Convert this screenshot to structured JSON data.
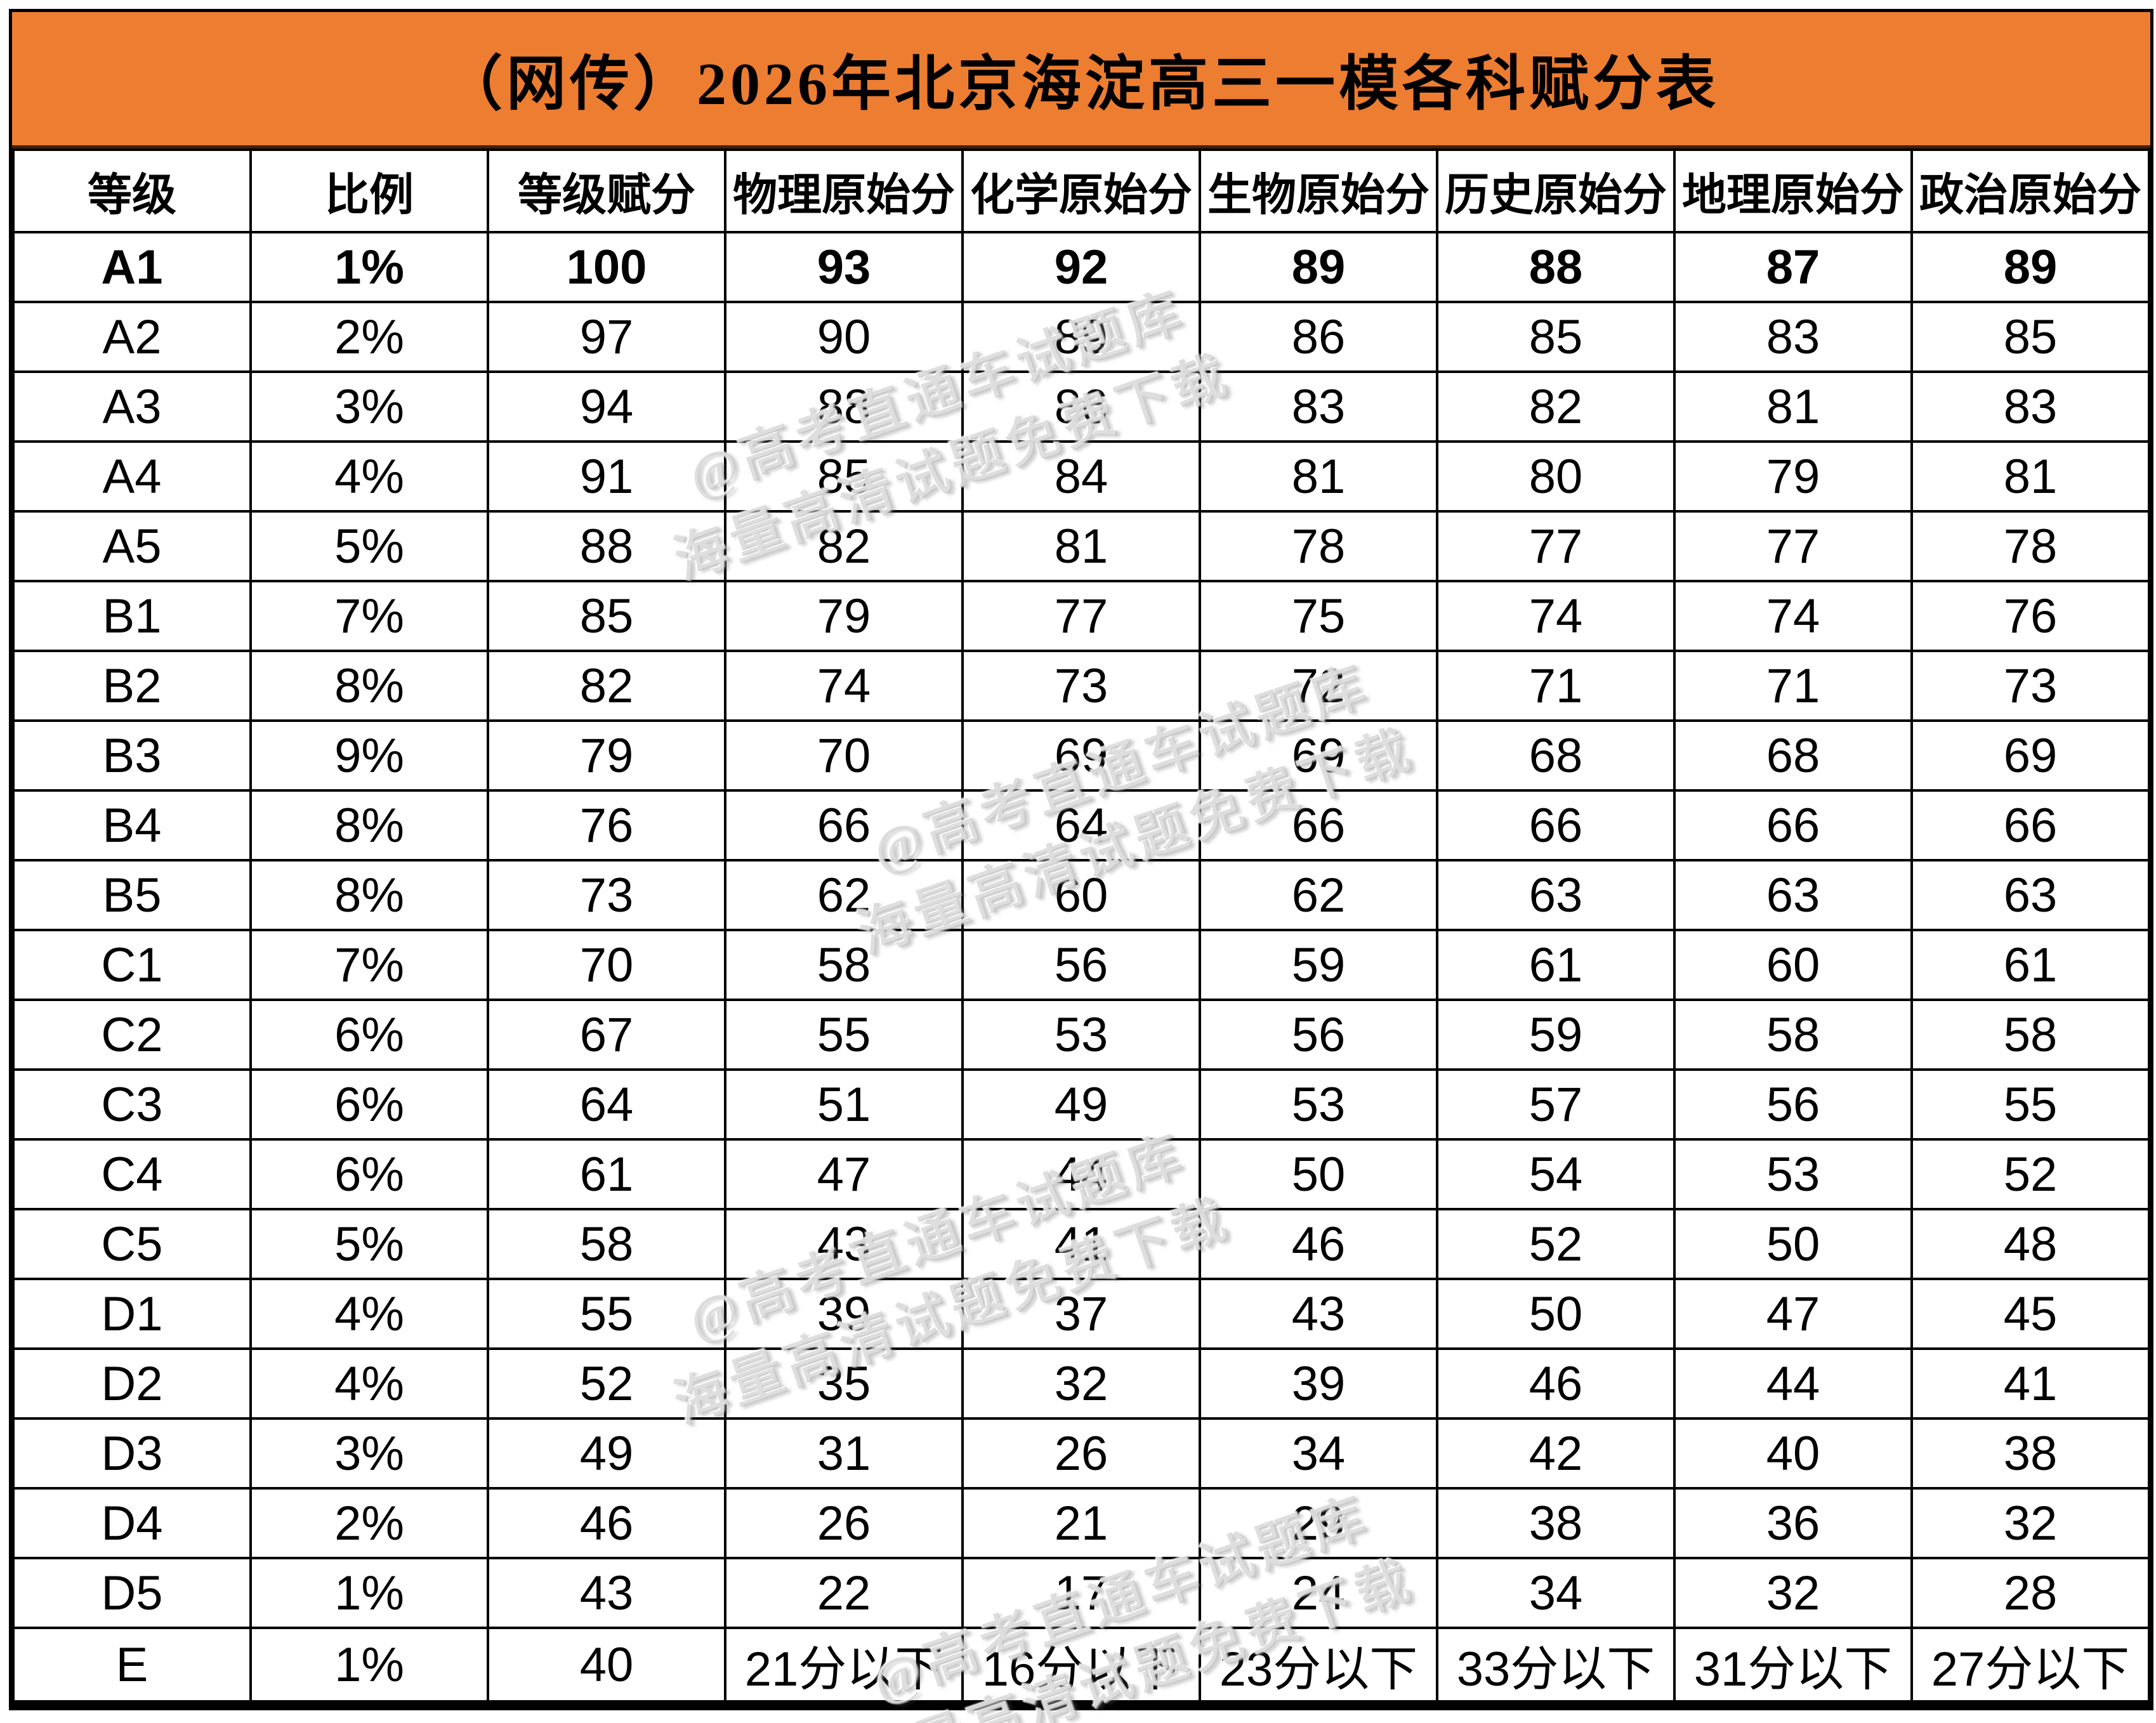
{
  "title": "（网传）2026年北京海淀高三一模各科赋分表",
  "watermark": {
    "line1": "@高考直通车试题库",
    "line2": "海量高清试题免费下载"
  },
  "colors": {
    "title_bar_bg": "#ED7D31",
    "accent_red": "#D90F0F",
    "grid": "#000000"
  },
  "table": {
    "headers": [
      "等级",
      "比例",
      "等级赋分",
      "物理原始分",
      "化学原始分",
      "生物原始分",
      "历史原始分",
      "地理原始分",
      "政治原始分"
    ],
    "rows": [
      {
        "cells": [
          "A1",
          "1%",
          "100",
          "93",
          "92",
          "89",
          "88",
          "87",
          "89"
        ],
        "score_red": true,
        "bold": true
      },
      {
        "cells": [
          "A2",
          "2%",
          "97",
          "90",
          "89",
          "86",
          "85",
          "83",
          "85"
        ],
        "score_red": true,
        "bold": false
      },
      {
        "cells": [
          "A3",
          "3%",
          "94",
          "88",
          "86",
          "83",
          "82",
          "81",
          "83"
        ],
        "score_red": true,
        "bold": false
      },
      {
        "cells": [
          "A4",
          "4%",
          "91",
          "85",
          "84",
          "81",
          "80",
          "79",
          "81"
        ],
        "score_red": true,
        "bold": false
      },
      {
        "cells": [
          "A5",
          "5%",
          "88",
          "82",
          "81",
          "78",
          "77",
          "77",
          "78"
        ],
        "score_red": true,
        "bold": false
      },
      {
        "cells": [
          "B1",
          "7%",
          "85",
          "79",
          "77",
          "75",
          "74",
          "74",
          "76"
        ],
        "score_red": true,
        "bold": false
      },
      {
        "cells": [
          "B2",
          "8%",
          "82",
          "74",
          "73",
          "72",
          "71",
          "71",
          "73"
        ],
        "score_red": true,
        "bold": false
      },
      {
        "cells": [
          "B3",
          "9%",
          "79",
          "70",
          "69",
          "69",
          "68",
          "68",
          "69"
        ],
        "score_red": true,
        "bold": false
      },
      {
        "cells": [
          "B4",
          "8%",
          "76",
          "66",
          "64",
          "66",
          "66",
          "66",
          "66"
        ],
        "score_red": true,
        "bold": false
      },
      {
        "cells": [
          "B5",
          "8%",
          "73",
          "62",
          "60",
          "62",
          "63",
          "63",
          "63"
        ],
        "score_red": true,
        "bold": false
      },
      {
        "cells": [
          "C1",
          "7%",
          "70",
          "58",
          "56",
          "59",
          "61",
          "60",
          "61"
        ],
        "score_red": true,
        "bold": false
      },
      {
        "cells": [
          "C2",
          "6%",
          "67",
          "55",
          "53",
          "56",
          "59",
          "58",
          "58"
        ],
        "score_red": true,
        "bold": false
      },
      {
        "cells": [
          "C3",
          "6%",
          "64",
          "51",
          "49",
          "53",
          "57",
          "56",
          "55"
        ],
        "score_red": true,
        "bold": false
      },
      {
        "cells": [
          "C4",
          "6%",
          "61",
          "47",
          "44",
          "50",
          "54",
          "53",
          "52"
        ],
        "score_red": true,
        "bold": false
      },
      {
        "cells": [
          "C5",
          "5%",
          "58",
          "43",
          "41",
          "46",
          "52",
          "50",
          "48"
        ],
        "score_red": true,
        "bold": false
      },
      {
        "cells": [
          "D1",
          "4%",
          "55",
          "39",
          "37",
          "43",
          "50",
          "47",
          "45"
        ],
        "score_red": true,
        "bold": false
      },
      {
        "cells": [
          "D2",
          "4%",
          "52",
          "35",
          "32",
          "39",
          "46",
          "44",
          "41"
        ],
        "score_red": false,
        "bold": false
      },
      {
        "cells": [
          "D3",
          "3%",
          "49",
          "31",
          "26",
          "34",
          "42",
          "40",
          "38"
        ],
        "score_red": false,
        "bold": false
      },
      {
        "cells": [
          "D4",
          "2%",
          "46",
          "26",
          "21",
          "29",
          "38",
          "36",
          "32"
        ],
        "score_red": false,
        "bold": false
      },
      {
        "cells": [
          "D5",
          "1%",
          "43",
          "22",
          "17",
          "24",
          "34",
          "32",
          "28"
        ],
        "score_red": false,
        "bold": false
      },
      {
        "cells": [
          "E",
          "1%",
          "40",
          "21分以下",
          "16分以下",
          "23分以下",
          "33分以下",
          "31分以下",
          "27分以下"
        ],
        "score_red": false,
        "bold": false
      }
    ]
  }
}
